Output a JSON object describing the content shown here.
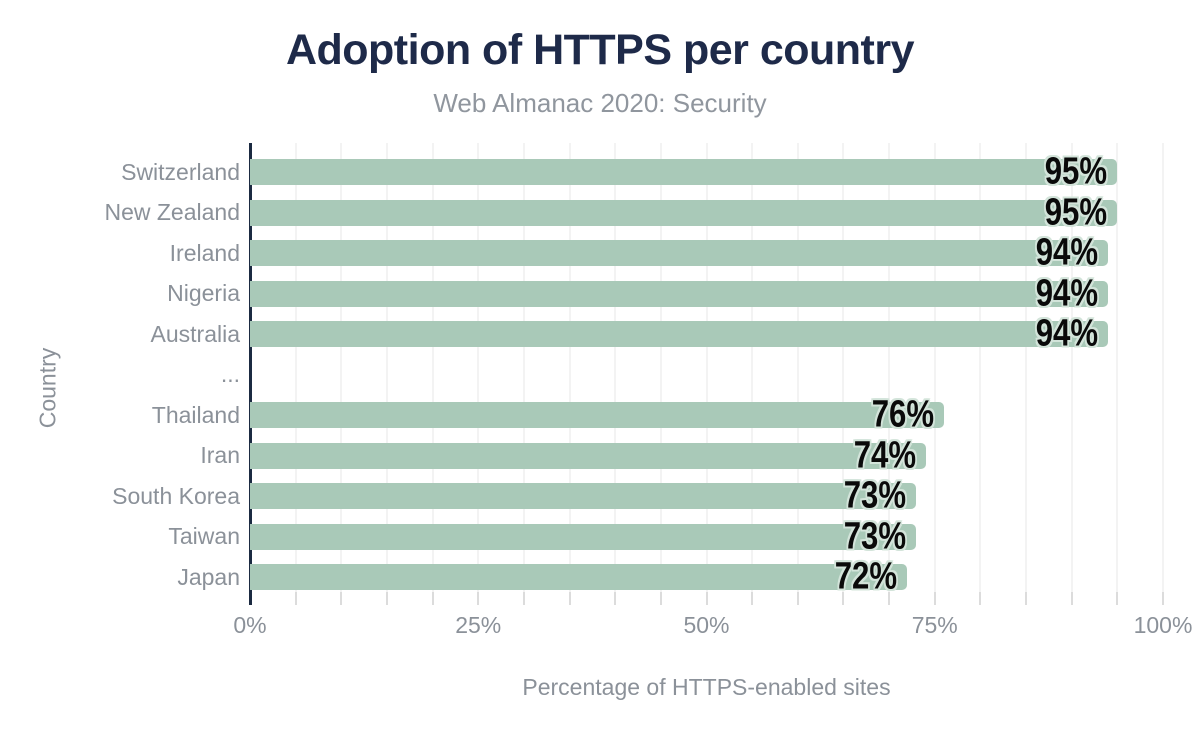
{
  "chart_data": {
    "type": "bar",
    "orientation": "horizontal",
    "title": "Adoption of HTTPS per country",
    "subtitle": "Web Almanac 2020: Security",
    "xlabel": "Percentage of HTTPS-enabled sites",
    "ylabel": "Country",
    "xlim": [
      0,
      100
    ],
    "grid": true,
    "grid_interval_pct": 5,
    "x_ticks": [
      {
        "value": 0,
        "label": "0%"
      },
      {
        "value": 25,
        "label": "25%"
      },
      {
        "value": 50,
        "label": "50%"
      },
      {
        "value": 75,
        "label": "75%"
      },
      {
        "value": 100,
        "label": "100%"
      }
    ],
    "categories": [
      "Switzerland",
      "New Zealand",
      "Ireland",
      "Nigeria",
      "Australia",
      "...",
      "Thailand",
      "Iran",
      "South Korea",
      "Taiwan",
      "Japan"
    ],
    "values": [
      95,
      95,
      94,
      94,
      94,
      null,
      76,
      74,
      73,
      73,
      72
    ],
    "value_labels": [
      "95%",
      "95%",
      "94%",
      "94%",
      "94%",
      "",
      "76%",
      "74%",
      "73%",
      "73%",
      "72%"
    ],
    "colors": {
      "background": "#ffffff",
      "bar": "#a9c9b8",
      "value_text": "#0a0a0a",
      "value_halo": "#d3e4da",
      "axis": "#1b2a41",
      "title": "#1e2a49",
      "subtitle": "#90969e",
      "label_gray": "#8b9199",
      "gridline": "#f3f3f3",
      "tick": "#dcdcdc"
    }
  }
}
